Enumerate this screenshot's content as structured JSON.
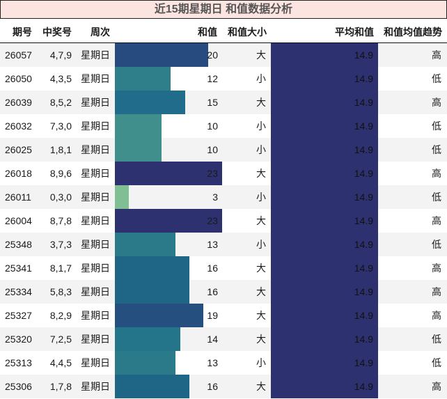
{
  "title": "近15期星期日 和值数据分析",
  "headers": {
    "issue": "期号",
    "numbers": "中奖号",
    "weekday": "周次",
    "sum": "和值",
    "size": "和值大小",
    "avg": "平均和值",
    "trend": "和值均值趋势"
  },
  "colors": {
    "avg_bg": "#2d3170",
    "title_bg": "#fce4e0"
  },
  "rows": [
    {
      "issue": "26057",
      "numbers": "4,7,9",
      "weekday": "星期日",
      "sum": "20",
      "size": "大",
      "avg": "14.9",
      "trend": "高",
      "bar_color": "#274b7e"
    },
    {
      "issue": "26050",
      "numbers": "4,3,5",
      "weekday": "星期日",
      "sum": "12",
      "size": "小",
      "avg": "14.9",
      "trend": "低",
      "bar_color": "#2f7f8a"
    },
    {
      "issue": "26039",
      "numbers": "8,5,2",
      "weekday": "星期日",
      "sum": "15",
      "size": "大",
      "avg": "14.9",
      "trend": "高",
      "bar_color": "#216c8a"
    },
    {
      "issue": "26032",
      "numbers": "7,3,0",
      "weekday": "星期日",
      "sum": "10",
      "size": "小",
      "avg": "14.9",
      "trend": "低",
      "bar_color": "#418f8c"
    },
    {
      "issue": "26025",
      "numbers": "1,8,1",
      "weekday": "星期日",
      "sum": "10",
      "size": "小",
      "avg": "14.9",
      "trend": "低",
      "bar_color": "#418f8c"
    },
    {
      "issue": "26018",
      "numbers": "8,9,6",
      "weekday": "星期日",
      "sum": "23",
      "size": "大",
      "avg": "14.9",
      "trend": "高",
      "bar_color": "#2d3170"
    },
    {
      "issue": "26011",
      "numbers": "0,3,0",
      "weekday": "星期日",
      "sum": "3",
      "size": "小",
      "avg": "14.9",
      "trend": "低",
      "bar_color": "#7fbf93"
    },
    {
      "issue": "26004",
      "numbers": "8,7,8",
      "weekday": "星期日",
      "sum": "23",
      "size": "大",
      "avg": "14.9",
      "trend": "高",
      "bar_color": "#2d3170"
    },
    {
      "issue": "25348",
      "numbers": "3,7,3",
      "weekday": "星期日",
      "sum": "13",
      "size": "小",
      "avg": "14.9",
      "trend": "低",
      "bar_color": "#2b7a8a"
    },
    {
      "issue": "25341",
      "numbers": "8,1,7",
      "weekday": "星期日",
      "sum": "16",
      "size": "大",
      "avg": "14.9",
      "trend": "高",
      "bar_color": "#1f6686"
    },
    {
      "issue": "25334",
      "numbers": "5,8,3",
      "weekday": "星期日",
      "sum": "16",
      "size": "大",
      "avg": "14.9",
      "trend": "高",
      "bar_color": "#1f6686"
    },
    {
      "issue": "25327",
      "numbers": "8,2,9",
      "weekday": "星期日",
      "sum": "19",
      "size": "大",
      "avg": "14.9",
      "trend": "高",
      "bar_color": "#244f7e"
    },
    {
      "issue": "25320",
      "numbers": "7,2,5",
      "weekday": "星期日",
      "sum": "14",
      "size": "大",
      "avg": "14.9",
      "trend": "低",
      "bar_color": "#24748a"
    },
    {
      "issue": "25313",
      "numbers": "4,4,5",
      "weekday": "星期日",
      "sum": "13",
      "size": "小",
      "avg": "14.9",
      "trend": "低",
      "bar_color": "#2b7a8a"
    },
    {
      "issue": "25306",
      "numbers": "1,7,8",
      "weekday": "星期日",
      "sum": "16",
      "size": "大",
      "avg": "14.9",
      "trend": "高",
      "bar_color": "#1f6686"
    }
  ]
}
